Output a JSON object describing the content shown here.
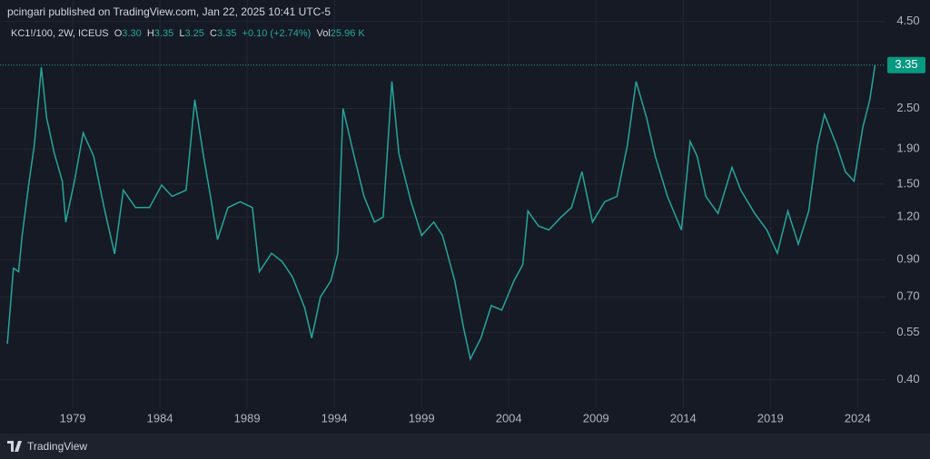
{
  "chart_data": {
    "type": "line",
    "title": "pcingari published on TradingView.com, Jan 22, 2025 10:41 UTC-5",
    "legend_info": {
      "symbol": "KC1!/100, 2W, ICEUS",
      "open_label": "O",
      "open": "3.30",
      "high_label": "H",
      "high": "3.35",
      "low_label": "L",
      "low": "3.25",
      "close_label": "C",
      "close": "3.35",
      "change": "+0.10 (+2.74%)",
      "volume_label": "Vol",
      "volume": "25.96 K"
    },
    "brand": "TradingView",
    "color": "#26a69a",
    "log_scale": true,
    "grid": true,
    "x": [
      1975.25,
      1975.6,
      1975.9,
      1976.1,
      1976.5,
      1976.8,
      1977.2,
      1977.5,
      1977.95,
      1978.4,
      1978.6,
      1979.1,
      1979.6,
      1980.2,
      1980.8,
      1981.4,
      1981.9,
      1982.6,
      1983.4,
      1984.1,
      1984.7,
      1985.5,
      1986.0,
      1986.5,
      1986.9,
      1987.3,
      1987.9,
      1988.6,
      1989.3,
      1989.7,
      1990.4,
      1991.0,
      1991.6,
      1992.3,
      1992.7,
      1993.2,
      1993.8,
      1994.2,
      1994.5,
      1995.1,
      1995.7,
      1996.3,
      1996.8,
      1997.3,
      1997.7,
      1998.4,
      1999.0,
      1999.7,
      2000.2,
      2000.9,
      2001.4,
      2001.8,
      2002.4,
      2003.0,
      2003.6,
      2004.3,
      2004.8,
      2005.1,
      2005.7,
      2006.3,
      2007.0,
      2007.6,
      2008.2,
      2008.8,
      2009.5,
      2010.2,
      2010.8,
      2011.3,
      2011.9,
      2012.4,
      2013.1,
      2013.9,
      2014.4,
      2014.8,
      2015.3,
      2016.0,
      2016.8,
      2017.3,
      2018.1,
      2018.8,
      2019.4,
      2020.0,
      2020.6,
      2021.2,
      2021.7,
      2022.1,
      2022.8,
      2023.3,
      2023.8,
      2024.3,
      2024.7,
      2025.0
    ],
    "values": [
      0.51,
      0.85,
      0.83,
      1.06,
      1.53,
      1.95,
      3.3,
      2.35,
      1.84,
      1.53,
      1.16,
      1.53,
      2.12,
      1.81,
      1.28,
      0.935,
      1.44,
      1.28,
      1.28,
      1.49,
      1.38,
      1.44,
      2.65,
      1.81,
      1.38,
      1.03,
      1.28,
      1.33,
      1.28,
      0.83,
      0.94,
      0.89,
      0.8,
      0.65,
      0.53,
      0.7,
      0.78,
      0.94,
      2.5,
      1.84,
      1.38,
      1.16,
      1.2,
      3.0,
      1.84,
      1.33,
      1.06,
      1.16,
      1.06,
      0.78,
      0.57,
      0.46,
      0.53,
      0.66,
      0.64,
      0.78,
      0.87,
      1.25,
      1.13,
      1.1,
      1.2,
      1.28,
      1.63,
      1.16,
      1.33,
      1.38,
      1.95,
      3.0,
      2.35,
      1.81,
      1.38,
      1.1,
      2.0,
      1.81,
      1.38,
      1.23,
      1.68,
      1.44,
      1.23,
      1.1,
      0.94,
      1.25,
      1.0,
      1.25,
      1.95,
      2.4,
      1.95,
      1.63,
      1.53,
      2.2,
      2.65,
      3.35
    ],
    "last_price": {
      "value": 3.35,
      "label": "3.35"
    },
    "xlim": [
      1974.83,
      2025.6
    ],
    "xticks": [
      1979,
      1984,
      1989,
      1994,
      1999,
      2004,
      2009,
      2014,
      2019,
      2024
    ],
    "ylim": [
      0.33,
      5.2
    ],
    "yticks": [
      {
        "value": 4.5,
        "label": "4.50"
      },
      {
        "value": 2.5,
        "label": "2.50"
      },
      {
        "value": 1.9,
        "label": "1.90"
      },
      {
        "value": 1.5,
        "label": "1.50"
      },
      {
        "value": 1.2,
        "label": "1.20"
      },
      {
        "value": 0.9,
        "label": "0.90"
      },
      {
        "value": 0.7,
        "label": "0.70"
      },
      0.55,
      {
        "value": 0.4,
        "label": "0.40"
      }
    ]
  }
}
